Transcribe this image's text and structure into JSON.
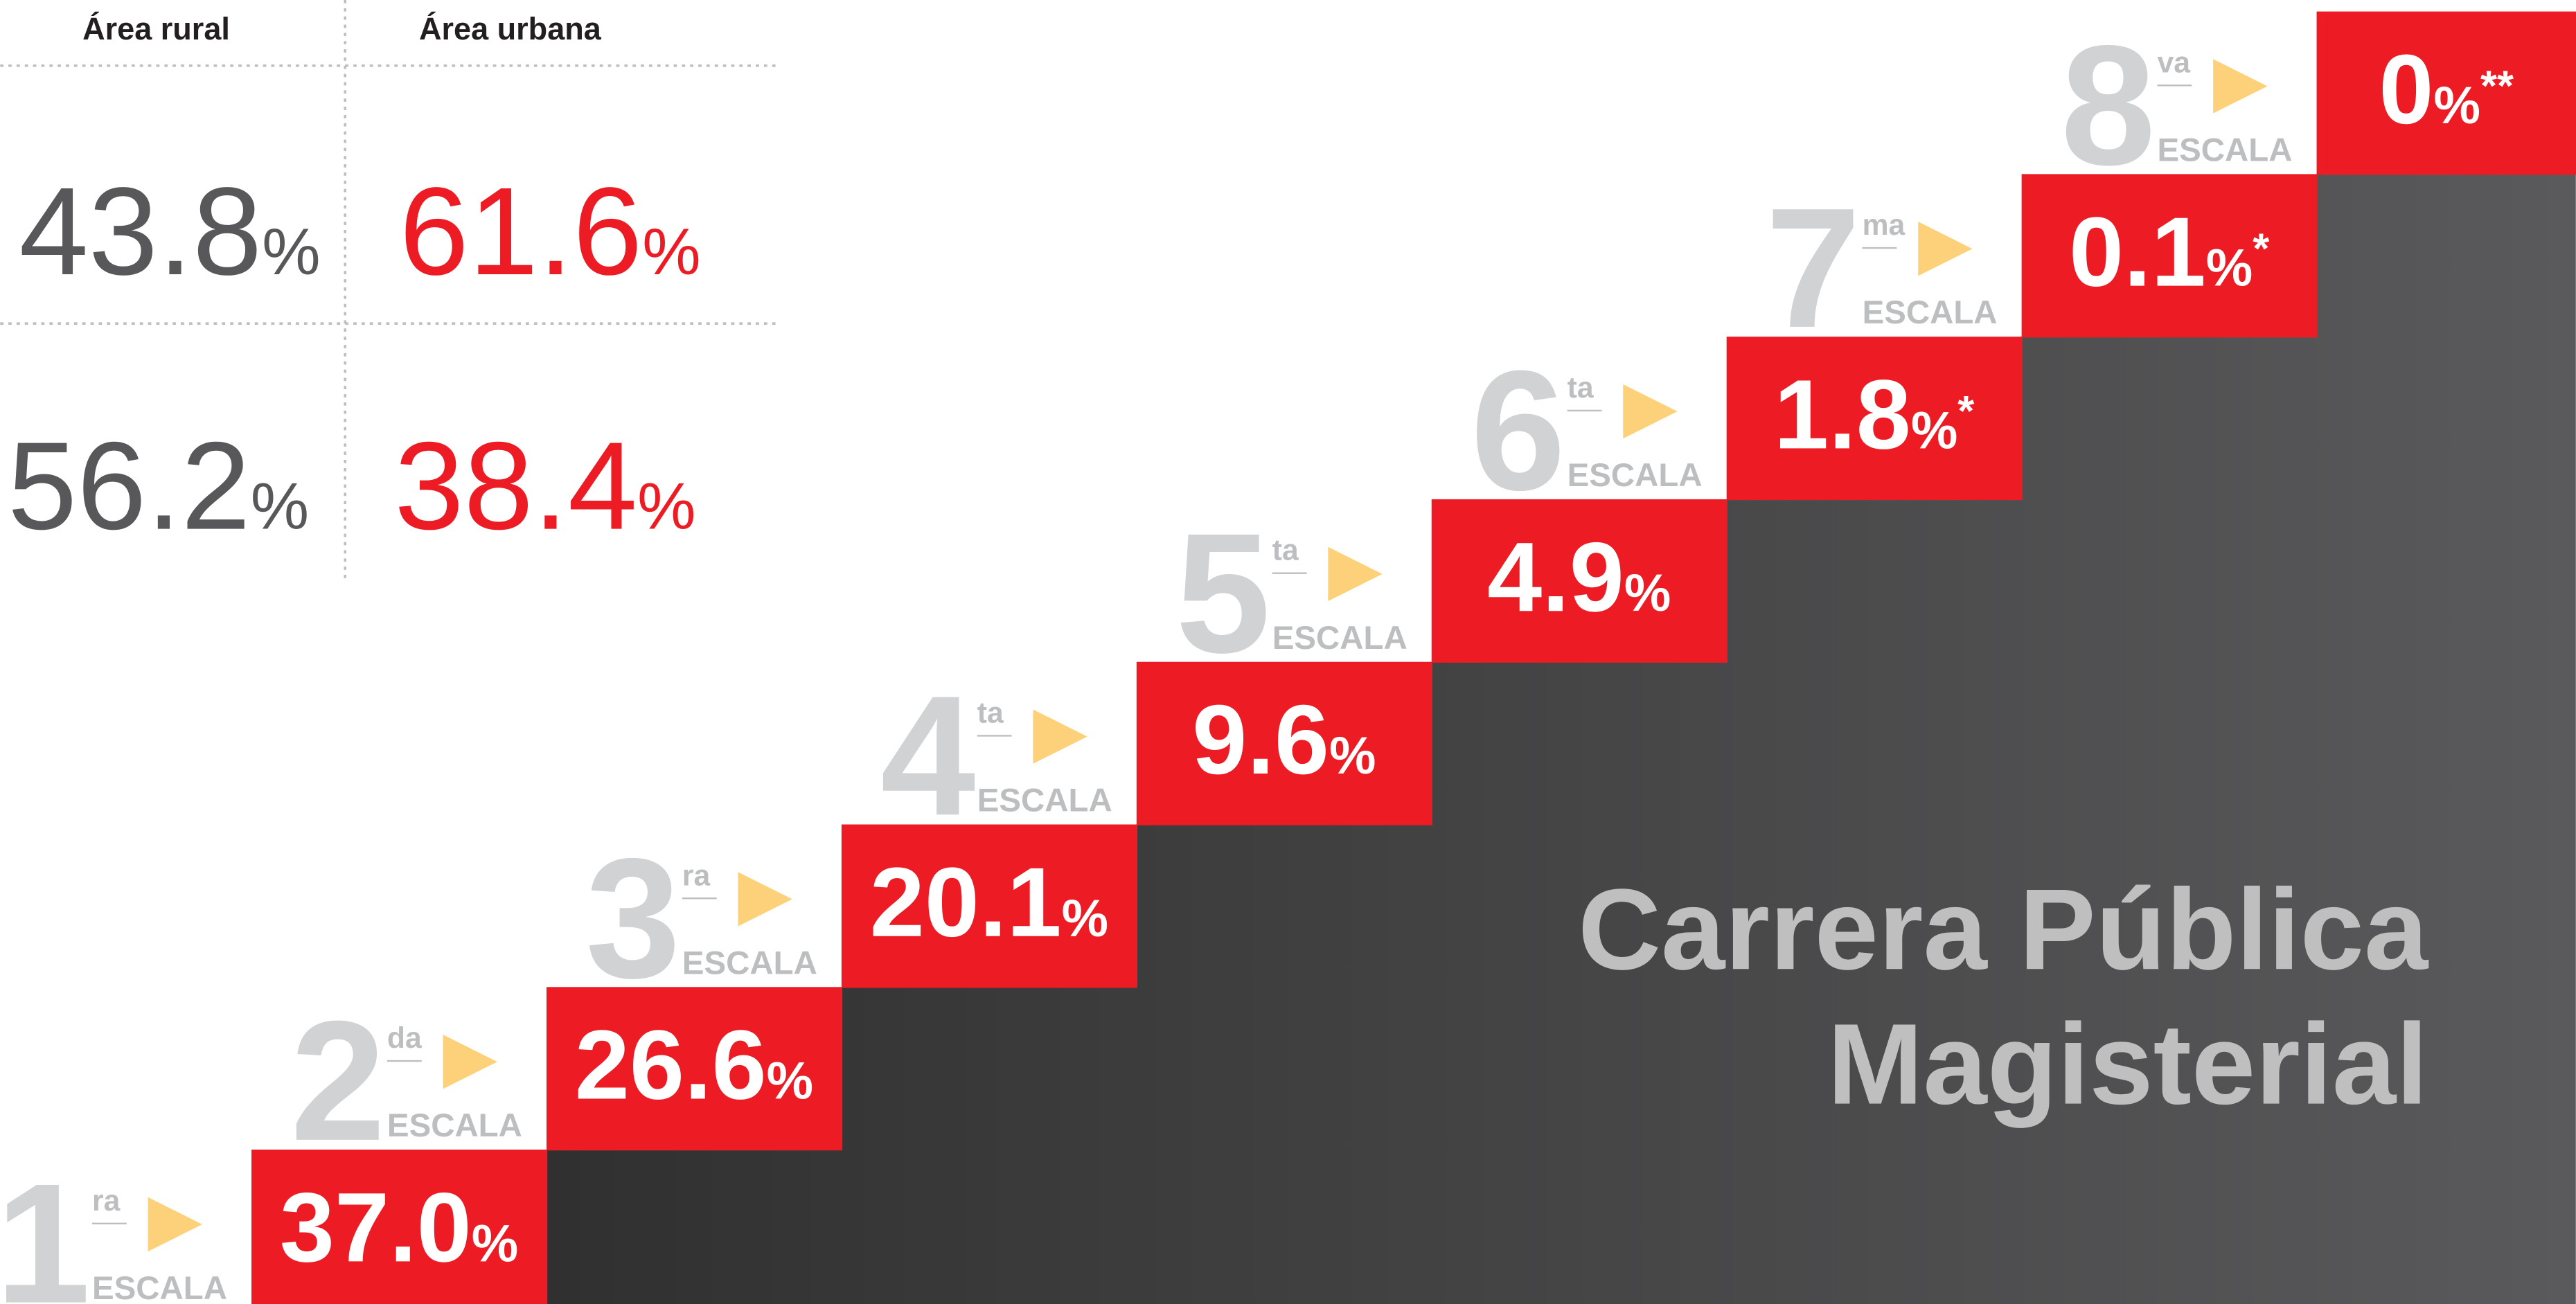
{
  "table": {
    "headers": [
      "Área rural",
      "Área urbana"
    ],
    "rows": [
      [
        "43.8",
        "61.6"
      ],
      [
        "56.2",
        "38.4"
      ]
    ]
  },
  "unit": "%",
  "step_label": "ESCALA",
  "steps": [
    {
      "number": "1",
      "suffix": "ra",
      "value": "37.0"
    },
    {
      "number": "2",
      "suffix": "da",
      "value": "26.6"
    },
    {
      "number": "3",
      "suffix": "ra",
      "value": "20.1"
    },
    {
      "number": "4",
      "suffix": "ta",
      "value": "9.6"
    },
    {
      "number": "5",
      "suffix": "ta",
      "value": "4.9"
    },
    {
      "number": "6",
      "suffix": "ta",
      "value": "1.8",
      "note": "*"
    },
    {
      "number": "7",
      "suffix": "ma",
      "value": "0.1",
      "note": "*"
    },
    {
      "number": "8",
      "suffix": "va",
      "value": "0",
      "note": "**"
    }
  ],
  "title_lines": [
    "Carrera Pública",
    "Magisterial"
  ]
}
